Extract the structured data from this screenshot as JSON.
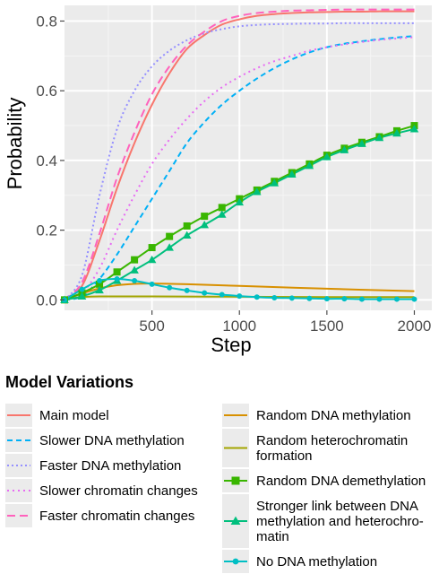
{
  "chart_data": {
    "type": "line",
    "xlabel": "Step",
    "ylabel": "Probability",
    "xlim": [
      0,
      2100
    ],
    "ylim": [
      -0.03,
      0.845
    ],
    "x_ticks": [
      500,
      1000,
      1500,
      2000
    ],
    "y_ticks": [
      0.0,
      0.2,
      0.4,
      0.6,
      0.8
    ],
    "x_tick_labels": [
      "500",
      "1000",
      "1500",
      "2000"
    ],
    "y_tick_labels": [
      "0.0",
      "0.2",
      "0.4",
      "0.6",
      "0.8"
    ],
    "grid": true,
    "background": "#ebebeb",
    "legend_title": "Model Variations",
    "legend_position": "bottom",
    "series": [
      {
        "name": "Main model",
        "color": "#f8766d",
        "dash": "solid",
        "marker": "none",
        "x": [
          0,
          100,
          200,
          300,
          400,
          500,
          600,
          700,
          800,
          900,
          1000,
          1100,
          1200,
          1300,
          1400,
          1500,
          1600,
          1700,
          1800,
          1900,
          2000
        ],
        "y": [
          0.0,
          0.04,
          0.17,
          0.32,
          0.45,
          0.56,
          0.65,
          0.72,
          0.76,
          0.79,
          0.805,
          0.815,
          0.82,
          0.823,
          0.825,
          0.826,
          0.827,
          0.827,
          0.828,
          0.828,
          0.828
        ]
      },
      {
        "name": "Slower DNA methylation",
        "color": "#00b0f6",
        "dash": "6,4",
        "marker": "none",
        "x": [
          0,
          100,
          200,
          300,
          400,
          500,
          600,
          700,
          800,
          900,
          1000,
          1100,
          1200,
          1300,
          1400,
          1500,
          1600,
          1700,
          1800,
          1900,
          2000
        ],
        "y": [
          0.0,
          0.01,
          0.06,
          0.13,
          0.21,
          0.29,
          0.37,
          0.45,
          0.51,
          0.56,
          0.6,
          0.635,
          0.665,
          0.69,
          0.71,
          0.725,
          0.735,
          0.742,
          0.748,
          0.753,
          0.757
        ]
      },
      {
        "name": "Faster DNA methylation",
        "color": "#9590ff",
        "dash": "2,3",
        "marker": "none",
        "x": [
          0,
          100,
          200,
          300,
          400,
          500,
          600,
          700,
          800,
          900,
          1000,
          1100,
          1200,
          1300,
          1400,
          1500,
          1600,
          1700,
          1800,
          1900,
          2000
        ],
        "y": [
          0.0,
          0.07,
          0.3,
          0.49,
          0.6,
          0.67,
          0.715,
          0.745,
          0.765,
          0.777,
          0.785,
          0.789,
          0.791,
          0.792,
          0.793,
          0.793,
          0.794,
          0.794,
          0.794,
          0.794,
          0.794
        ]
      },
      {
        "name": "Slower chromatin changes",
        "color": "#e76bf3",
        "dash": "2,4",
        "marker": "none",
        "x": [
          0,
          100,
          200,
          300,
          400,
          500,
          600,
          700,
          800,
          900,
          1000,
          1100,
          1200,
          1300,
          1400,
          1500,
          1600,
          1700,
          1800,
          1900,
          2000
        ],
        "y": [
          0.0,
          0.02,
          0.09,
          0.2,
          0.3,
          0.39,
          0.46,
          0.52,
          0.57,
          0.61,
          0.64,
          0.665,
          0.685,
          0.7,
          0.715,
          0.725,
          0.733,
          0.74,
          0.746,
          0.75,
          0.754
        ]
      },
      {
        "name": "Faster chromatin changes",
        "color": "#ff62bc",
        "dash": "9,5",
        "marker": "none",
        "x": [
          0,
          100,
          200,
          300,
          400,
          500,
          600,
          700,
          800,
          900,
          1000,
          1100,
          1200,
          1300,
          1400,
          1500,
          1600,
          1700,
          1800,
          1900,
          2000
        ],
        "y": [
          0.0,
          0.05,
          0.19,
          0.35,
          0.48,
          0.59,
          0.67,
          0.73,
          0.77,
          0.8,
          0.815,
          0.823,
          0.827,
          0.83,
          0.831,
          0.832,
          0.833,
          0.833,
          0.833,
          0.833,
          0.833
        ]
      },
      {
        "name": "Random DNA methylation",
        "color": "#d89000",
        "dash": "solid",
        "marker": "none",
        "x": [
          0,
          100,
          200,
          300,
          400,
          500,
          700,
          1000,
          1500,
          2000
        ],
        "y": [
          0.0,
          0.018,
          0.033,
          0.042,
          0.046,
          0.047,
          0.045,
          0.04,
          0.032,
          0.025
        ]
      },
      {
        "name": "Random heterochromatin formation",
        "color": "#a3a500",
        "dash": "solid",
        "marker": "none",
        "x": [
          0,
          100,
          200,
          500,
          1000,
          1500,
          2000
        ],
        "y": [
          0.0,
          0.008,
          0.01,
          0.01,
          0.009,
          0.008,
          0.008
        ]
      },
      {
        "name": "Random DNA demethylation",
        "color": "#39b600",
        "dash": "solid",
        "marker": "square",
        "x": [
          0,
          100,
          200,
          300,
          400,
          500,
          600,
          700,
          800,
          900,
          1000,
          1100,
          1200,
          1300,
          1400,
          1500,
          1600,
          1700,
          1800,
          1900,
          2000
        ],
        "y": [
          0.0,
          0.02,
          0.045,
          0.08,
          0.115,
          0.15,
          0.182,
          0.212,
          0.24,
          0.265,
          0.29,
          0.315,
          0.34,
          0.365,
          0.39,
          0.415,
          0.435,
          0.452,
          0.468,
          0.485,
          0.5
        ]
      },
      {
        "name": "Stronger link between DNA methylation and heterochromatin",
        "color": "#00bf7d",
        "dash": "solid",
        "marker": "triangle",
        "x": [
          0,
          100,
          200,
          300,
          400,
          500,
          600,
          700,
          800,
          900,
          1000,
          1100,
          1200,
          1300,
          1400,
          1500,
          1600,
          1700,
          1800,
          1900,
          2000
        ],
        "y": [
          0.0,
          0.01,
          0.028,
          0.055,
          0.085,
          0.115,
          0.15,
          0.185,
          0.215,
          0.245,
          0.28,
          0.31,
          0.335,
          0.36,
          0.385,
          0.41,
          0.43,
          0.448,
          0.465,
          0.478,
          0.49
        ]
      },
      {
        "name": "No DNA methylation",
        "color": "#00bfc4",
        "dash": "solid",
        "marker": "circle",
        "x": [
          0,
          100,
          200,
          300,
          400,
          500,
          600,
          700,
          800,
          900,
          1000,
          1100,
          1200,
          1300,
          1400,
          1500,
          1600,
          1700,
          1800,
          1900,
          2000
        ],
        "y": [
          0.0,
          0.03,
          0.055,
          0.06,
          0.055,
          0.045,
          0.035,
          0.027,
          0.02,
          0.015,
          0.011,
          0.008,
          0.006,
          0.005,
          0.004,
          0.003,
          0.003,
          0.002,
          0.002,
          0.002,
          0.002
        ]
      }
    ],
    "legend_lines": {
      "Main model": [
        "Main model"
      ],
      "Slower DNA methylation": [
        "Slower DNA methylation"
      ],
      "Faster DNA methylation": [
        "Faster DNA methylation"
      ],
      "Slower chromatin changes": [
        "Slower chromatin changes"
      ],
      "Faster chromatin changes": [
        "Faster chromatin changes"
      ],
      "Random DNA methylation": [
        "Random DNA methylation"
      ],
      "Random heterochromatin formation": [
        "Random heterochromatin",
        "formation"
      ],
      "Random DNA demethylation": [
        "Random DNA demethylation"
      ],
      "Stronger link between DNA methylation and heterochromatin": [
        "Stronger link between DNA",
        "methylation and heterochro-",
        "matin"
      ],
      "No DNA methylation": [
        "No DNA methylation"
      ]
    }
  }
}
